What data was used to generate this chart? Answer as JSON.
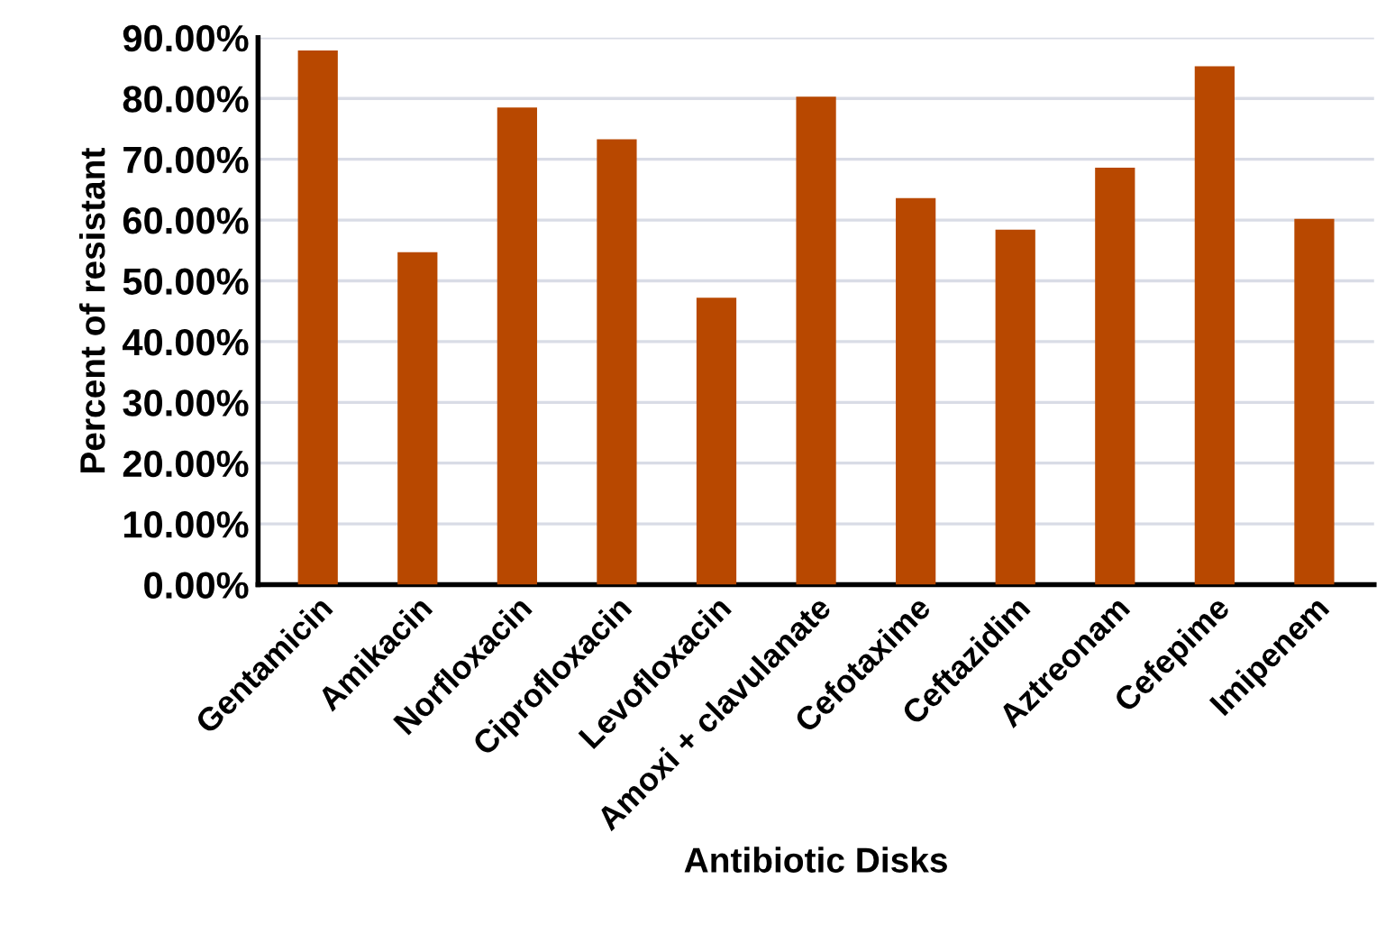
{
  "chart_data": {
    "type": "bar",
    "xlabel": "Antibiotic Disks",
    "ylabel": "Percent of resistant",
    "categories": [
      "Gentamicin",
      "Amikacin",
      "Norfloxacin",
      "Ciprofloxacin",
      "Levofloxacin",
      "Amoxi + clavulanate",
      "Cefotaxime",
      "Ceftazidim",
      "Aztreonam",
      "Cefepime",
      "Imipenem"
    ],
    "series": [
      {
        "color": "#b84800",
        "values": [
          87.9,
          54.7,
          78.5,
          73.3,
          47.2,
          80.3,
          63.6,
          58.4,
          68.6,
          85.3,
          60.2
        ]
      }
    ],
    "ylim": [
      0,
      90
    ],
    "yticks": [
      {
        "value": 0,
        "label": "0.00%"
      },
      {
        "value": 10,
        "label": "10.00%"
      },
      {
        "value": 20,
        "label": "20.00%"
      },
      {
        "value": 30,
        "label": "30.00%"
      },
      {
        "value": 40,
        "label": "40.00%"
      },
      {
        "value": 50,
        "label": "50.00%"
      },
      {
        "value": 60,
        "label": "60.00%"
      },
      {
        "value": 70,
        "label": "70.00%"
      },
      {
        "value": 80,
        "label": "80.00%"
      },
      {
        "value": 90,
        "label": "90.00%"
      }
    ],
    "grid": "y",
    "legend": false
  }
}
